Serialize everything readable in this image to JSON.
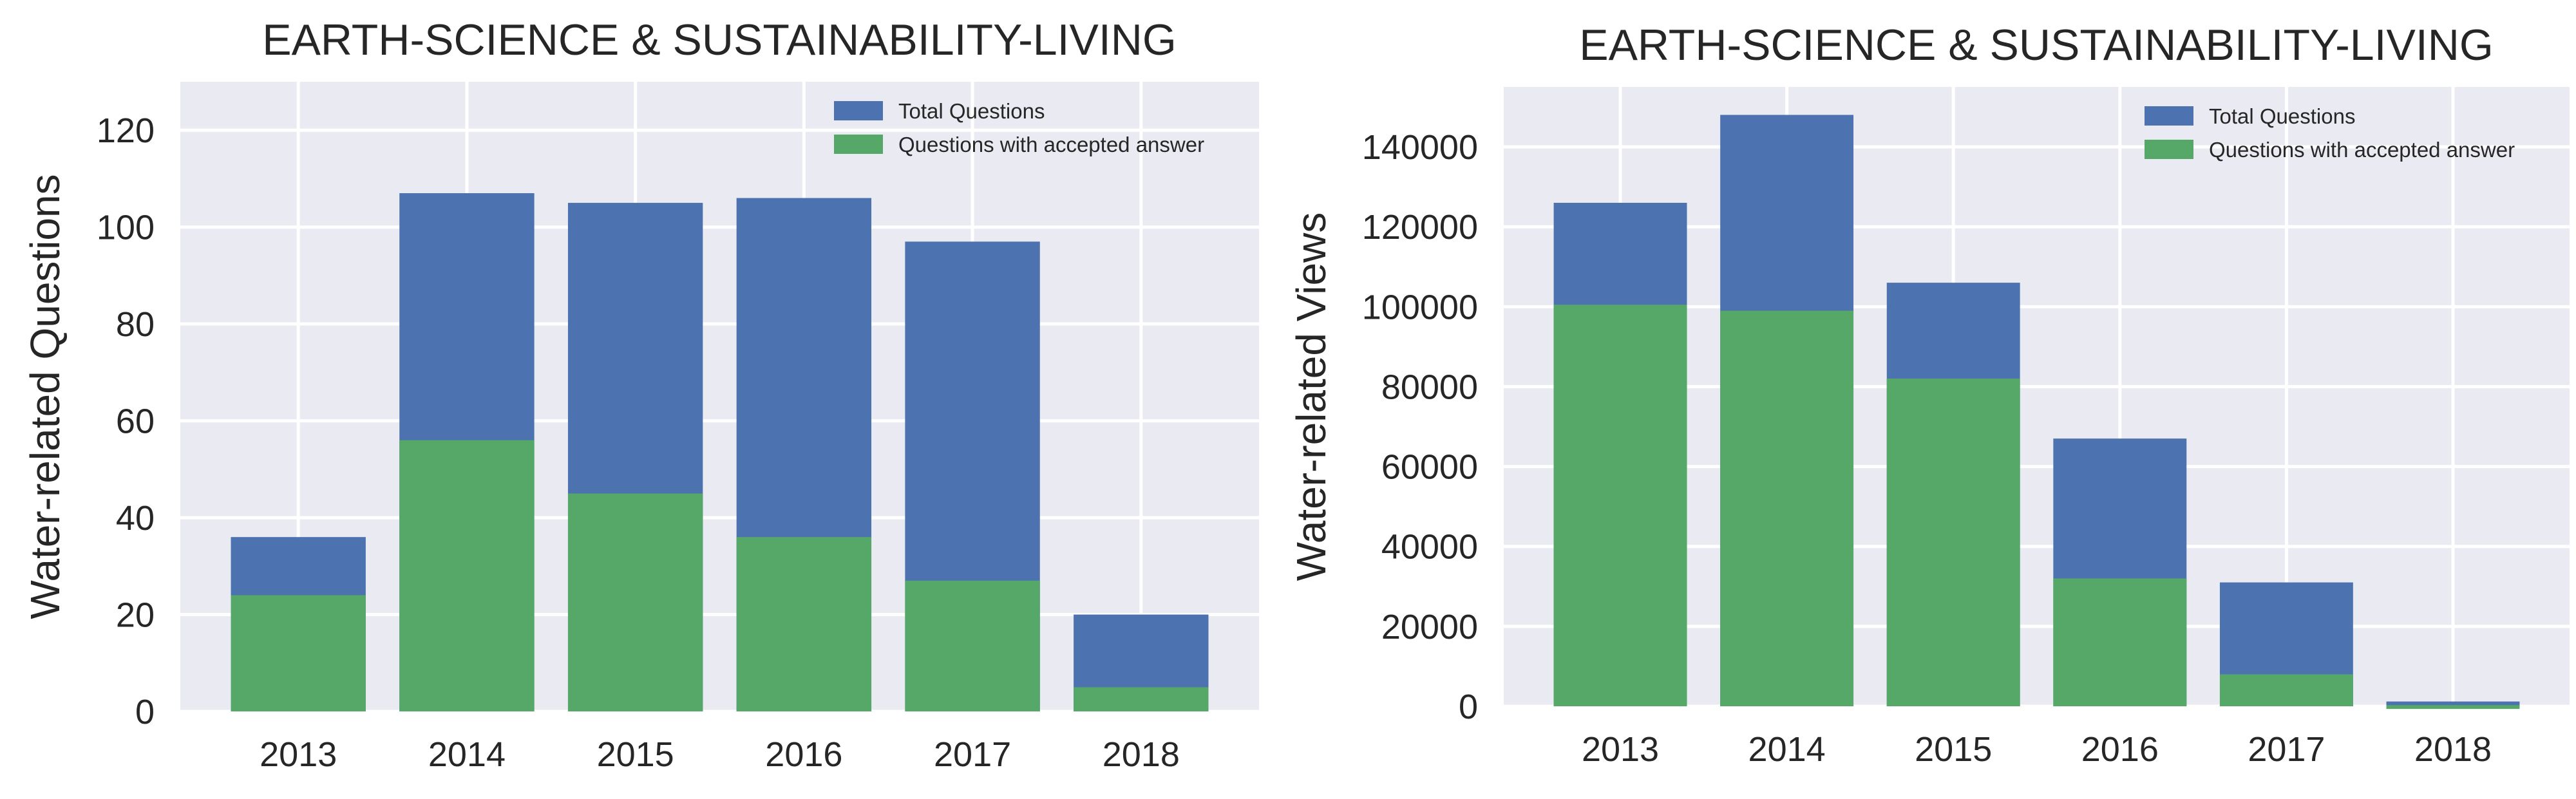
{
  "chart_data": [
    {
      "type": "bar",
      "stacked": "overlay",
      "title": "EARTH-SCIENCE & SUSTAINABILITY-LIVING",
      "xlabel": "",
      "ylabel": "Water-related Questions",
      "categories": [
        "2013",
        "2014",
        "2015",
        "2016",
        "2017",
        "2018"
      ],
      "ylim": [
        0,
        130
      ],
      "yticks": [
        0,
        20,
        40,
        60,
        80,
        100,
        120
      ],
      "grid": true,
      "legend_position": "top-right",
      "series": [
        {
          "name": "Total Questions",
          "color": "#4C72B0",
          "values": [
            36,
            107,
            105,
            106,
            97,
            20
          ]
        },
        {
          "name": "Questions with accepted answer",
          "color": "#55A868",
          "values": [
            24,
            56,
            45,
            36,
            27,
            5
          ]
        }
      ]
    },
    {
      "type": "bar",
      "stacked": "overlay",
      "title": "EARTH-SCIENCE & SUSTAINABILITY-LIVING",
      "xlabel": "",
      "ylabel": "Water-related Views",
      "categories": [
        "2013",
        "2014",
        "2015",
        "2016",
        "2017",
        "2018"
      ],
      "ylim": [
        0,
        155000
      ],
      "yticks": [
        0,
        20000,
        40000,
        60000,
        80000,
        100000,
        120000,
        140000
      ],
      "grid": true,
      "legend_position": "top-right",
      "series": [
        {
          "name": "Total Questions",
          "color": "#4C72B0",
          "values": [
            126000,
            148000,
            106000,
            67000,
            31000,
            1200
          ]
        },
        {
          "name": "Questions with accepted answer",
          "color": "#55A868",
          "values": [
            100500,
            99000,
            82000,
            32000,
            8000,
            300
          ]
        }
      ]
    }
  ]
}
